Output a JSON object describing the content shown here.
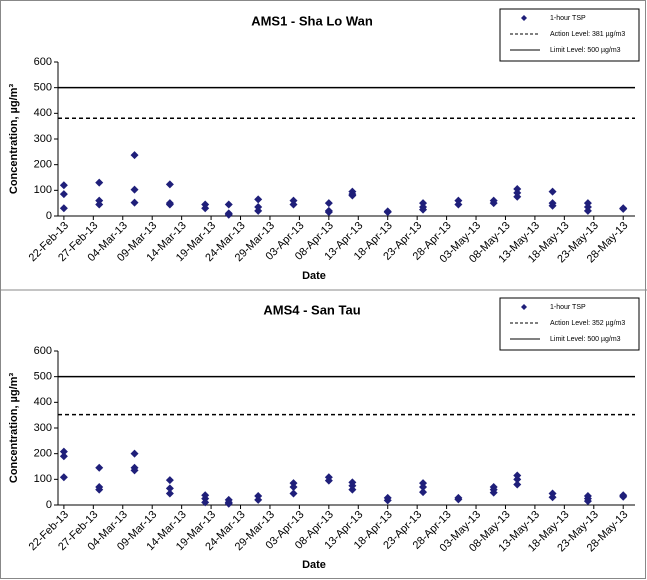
{
  "chart_data": [
    {
      "type": "scatter",
      "title": "AMS1 - Sha Lo Wan",
      "xlabel": "Date",
      "ylabel": "Concentration, µg/m³",
      "xlim": [
        "2013-02-21",
        "2013-05-30"
      ],
      "ylim": [
        0,
        600
      ],
      "yticks": [
        0,
        100,
        200,
        300,
        400,
        500,
        600
      ],
      "xticks": [
        {
          "value": "2013-02-22",
          "label": "22-Feb-13"
        },
        {
          "value": "2013-02-27",
          "label": "27-Feb-13"
        },
        {
          "value": "2013-03-04",
          "label": "04-Mar-13"
        },
        {
          "value": "2013-03-09",
          "label": "09-Mar-13"
        },
        {
          "value": "2013-03-14",
          "label": "14-Mar-13"
        },
        {
          "value": "2013-03-19",
          "label": "19-Mar-13"
        },
        {
          "value": "2013-03-24",
          "label": "24-Mar-13"
        },
        {
          "value": "2013-03-29",
          "label": "29-Mar-13"
        },
        {
          "value": "2013-04-03",
          "label": "03-Apr-13"
        },
        {
          "value": "2013-04-08",
          "label": "08-Apr-13"
        },
        {
          "value": "2013-04-13",
          "label": "13-Apr-13"
        },
        {
          "value": "2013-04-18",
          "label": "18-Apr-13"
        },
        {
          "value": "2013-04-23",
          "label": "23-Apr-13"
        },
        {
          "value": "2013-04-28",
          "label": "28-Apr-13"
        },
        {
          "value": "2013-05-03",
          "label": "03-May-13"
        },
        {
          "value": "2013-05-08",
          "label": "08-May-13"
        },
        {
          "value": "2013-05-13",
          "label": "13-May-13"
        },
        {
          "value": "2013-05-18",
          "label": "18-May-13"
        },
        {
          "value": "2013-05-23",
          "label": "23-May-13"
        },
        {
          "value": "2013-05-28",
          "label": "28-May-13"
        }
      ],
      "legend": "upper right",
      "series": [
        {
          "name": "1-hour TSP",
          "color": "#1f1f7a",
          "x": [
            "2013-02-22",
            "2013-02-22",
            "2013-02-22",
            "2013-02-28",
            "2013-02-28",
            "2013-02-28",
            "2013-03-06",
            "2013-03-06",
            "2013-03-06",
            "2013-03-12",
            "2013-03-12",
            "2013-03-12",
            "2013-03-18",
            "2013-03-18",
            "2013-03-22",
            "2013-03-22",
            "2013-03-22",
            "2013-03-27",
            "2013-03-27",
            "2013-03-27",
            "2013-04-02",
            "2013-04-02",
            "2013-04-08",
            "2013-04-08",
            "2013-04-08",
            "2013-04-12",
            "2013-04-12",
            "2013-04-12",
            "2013-04-18",
            "2013-04-18",
            "2013-04-24",
            "2013-04-24",
            "2013-04-24",
            "2013-04-30",
            "2013-04-30",
            "2013-05-06",
            "2013-05-06",
            "2013-05-10",
            "2013-05-10",
            "2013-05-10",
            "2013-05-16",
            "2013-05-16",
            "2013-05-16",
            "2013-05-22",
            "2013-05-22",
            "2013-05-22",
            "2013-05-28",
            "2013-05-28"
          ],
          "values": [
            120,
            85,
            30,
            130,
            60,
            45,
            237,
            103,
            52,
            123,
            50,
            45,
            45,
            30,
            45,
            10,
            5,
            65,
            35,
            20,
            60,
            45,
            50,
            20,
            15,
            95,
            85,
            80,
            18,
            15,
            50,
            35,
            25,
            60,
            45,
            60,
            50,
            105,
            90,
            75,
            95,
            50,
            40,
            50,
            35,
            20,
            30,
            28
          ]
        }
      ],
      "lines": [
        {
          "name": "Action Level: 381 µg/m3",
          "value": 381,
          "style": "dashed",
          "color": "#000000"
        },
        {
          "name": "Limit Level: 500 µg/m3",
          "value": 500,
          "style": "solid",
          "color": "#000000"
        }
      ]
    },
    {
      "type": "scatter",
      "title": "AMS4 - San Tau",
      "xlabel": "Date",
      "ylabel": "Concentration, µg/m³",
      "xlim": [
        "2013-02-21",
        "2013-05-30"
      ],
      "ylim": [
        0,
        600
      ],
      "yticks": [
        0,
        100,
        200,
        300,
        400,
        500,
        600
      ],
      "xticks": [
        {
          "value": "2013-02-22",
          "label": "22-Feb-13"
        },
        {
          "value": "2013-02-27",
          "label": "27-Feb-13"
        },
        {
          "value": "2013-03-04",
          "label": "04-Mar-13"
        },
        {
          "value": "2013-03-09",
          "label": "09-Mar-13"
        },
        {
          "value": "2013-03-14",
          "label": "14-Mar-13"
        },
        {
          "value": "2013-03-19",
          "label": "19-Mar-13"
        },
        {
          "value": "2013-03-24",
          "label": "24-Mar-13"
        },
        {
          "value": "2013-03-29",
          "label": "29-Mar-13"
        },
        {
          "value": "2013-04-03",
          "label": "03-Apr-13"
        },
        {
          "value": "2013-04-08",
          "label": "08-Apr-13"
        },
        {
          "value": "2013-04-13",
          "label": "13-Apr-13"
        },
        {
          "value": "2013-04-18",
          "label": "18-Apr-13"
        },
        {
          "value": "2013-04-23",
          "label": "23-Apr-13"
        },
        {
          "value": "2013-04-28",
          "label": "28-Apr-13"
        },
        {
          "value": "2013-05-03",
          "label": "03-May-13"
        },
        {
          "value": "2013-05-08",
          "label": "08-May-13"
        },
        {
          "value": "2013-05-13",
          "label": "13-May-13"
        },
        {
          "value": "2013-05-18",
          "label": "18-May-13"
        },
        {
          "value": "2013-05-23",
          "label": "23-May-13"
        },
        {
          "value": "2013-05-28",
          "label": "28-May-13"
        }
      ],
      "legend": "upper right",
      "series": [
        {
          "name": "1-hour TSP",
          "color": "#1f1f7a",
          "x": [
            "2013-02-22",
            "2013-02-22",
            "2013-02-22",
            "2013-02-28",
            "2013-02-28",
            "2013-02-28",
            "2013-03-06",
            "2013-03-06",
            "2013-03-06",
            "2013-03-12",
            "2013-03-12",
            "2013-03-12",
            "2013-03-18",
            "2013-03-18",
            "2013-03-18",
            "2013-03-22",
            "2013-03-22",
            "2013-03-22",
            "2013-03-27",
            "2013-03-27",
            "2013-04-02",
            "2013-04-02",
            "2013-04-02",
            "2013-04-08",
            "2013-04-08",
            "2013-04-12",
            "2013-04-12",
            "2013-04-12",
            "2013-04-18",
            "2013-04-18",
            "2013-04-24",
            "2013-04-24",
            "2013-04-24",
            "2013-04-30",
            "2013-04-30",
            "2013-05-06",
            "2013-05-06",
            "2013-05-06",
            "2013-05-10",
            "2013-05-10",
            "2013-05-10",
            "2013-05-16",
            "2013-05-16",
            "2013-05-22",
            "2013-05-22",
            "2013-05-22",
            "2013-05-28",
            "2013-05-28"
          ],
          "values": [
            208,
            190,
            108,
            145,
            70,
            60,
            200,
            145,
            135,
            97,
            65,
            45,
            38,
            25,
            10,
            20,
            10,
            5,
            35,
            20,
            85,
            70,
            45,
            108,
            95,
            88,
            75,
            60,
            28,
            18,
            85,
            70,
            50,
            28,
            22,
            70,
            60,
            48,
            115,
            100,
            80,
            45,
            30,
            35,
            25,
            15,
            38,
            32
          ]
        }
      ],
      "lines": [
        {
          "name": "Action Level: 352 µg/m3",
          "value": 352,
          "style": "dashed",
          "color": "#000000"
        },
        {
          "name": "Limit Level: 500 µg/m3",
          "value": 500,
          "style": "solid",
          "color": "#000000"
        }
      ]
    }
  ]
}
